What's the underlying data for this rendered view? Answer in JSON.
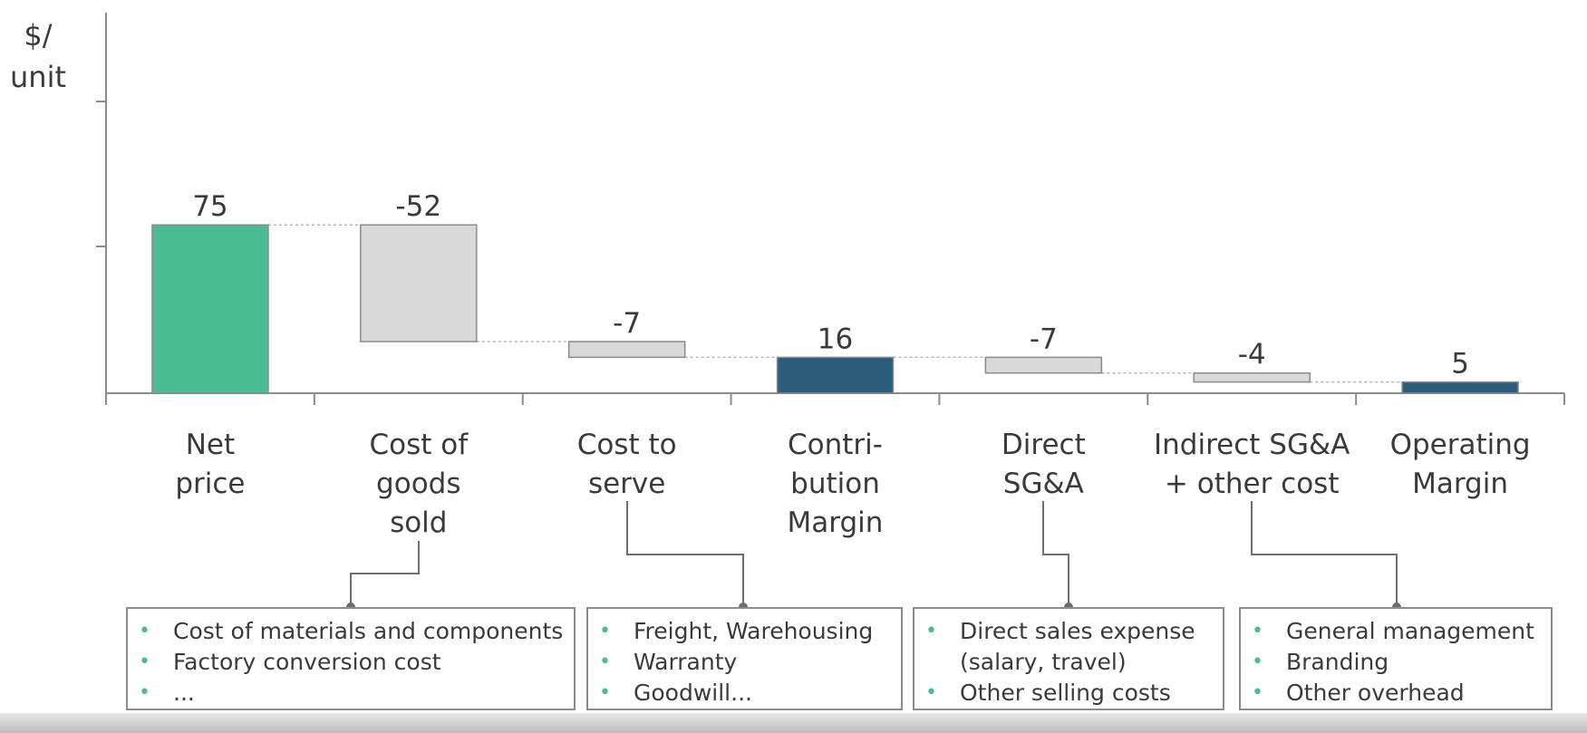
{
  "chart_data": {
    "type": "bar",
    "subtype": "waterfall",
    "ylabel": "$/ unit",
    "categories": [
      "Net\nprice",
      "Cost of\ngoods\nsold",
      "Cost to\nserve",
      "Contri-\nbution\nMargin",
      "Direct\nSG&A",
      "Indirect SG&A\n+ other cost",
      "Operating\nMargin"
    ],
    "values": [
      75,
      -52,
      -7,
      16,
      -7,
      -4,
      5
    ],
    "data_labels": [
      "75",
      "-52",
      "-7",
      "16",
      "-7",
      "-4",
      "5"
    ],
    "bar_kinds": [
      "start",
      "delta",
      "delta",
      "total",
      "delta",
      "delta",
      "total"
    ],
    "ylim": [
      0,
      130
    ],
    "grid": false,
    "colors": {
      "start": "#4bbb94",
      "delta": "#d9d9d9",
      "total": "#2a5d7b",
      "outline": "#8a8a8a",
      "connector": "#b5b5b5",
      "bullet": "#4bbb94"
    }
  },
  "breakdowns": [
    {
      "category_index": 1,
      "items": [
        "Cost of materials and components",
        "Factory conversion cost",
        "..."
      ]
    },
    {
      "category_index": 2,
      "items": [
        "Freight, Warehousing",
        "Warranty",
        "Goodwill..."
      ]
    },
    {
      "category_index": 4,
      "items": [
        "Direct sales expense\n(salary, travel)",
        "Other selling costs"
      ]
    },
    {
      "category_index": 5,
      "items": [
        "General management",
        "Branding",
        "Other overhead"
      ]
    }
  ]
}
